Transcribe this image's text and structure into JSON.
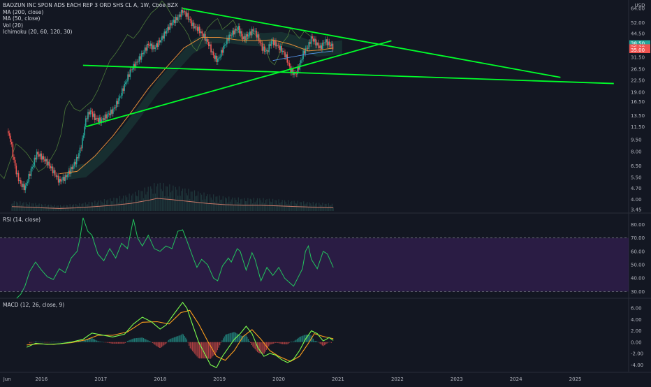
{
  "header": {
    "symbol_line": "BAOZUN INC SPON ADS EACH REP 3 ORD SHS CL A, 1W, Cboe BZX",
    "indicators": [
      "MA (200, close)",
      "MA (50, close)",
      "Vol (20)",
      "Ichimoku (20, 60, 120, 30)"
    ],
    "currency": "USD"
  },
  "rsi_label": "RSI (14, close)",
  "macd_label": "MACD (12, 26, close, 9)",
  "price_badges": [
    "38.50",
    "36.30",
    "35.00"
  ],
  "colors": {
    "background": "#131722",
    "up": "#26a69a",
    "down": "#ef5350",
    "trendline": "#00ff2a",
    "rsi_line": "#22c55e",
    "rsi_band": "#3b1f5c",
    "macd_line": "#7cff4d",
    "signal_line": "#ff9f1c",
    "ma50": "#e38c39",
    "volume": "#c97868"
  },
  "chart_data": [
    {
      "type": "candlestick",
      "title": "BAOZUN INC SPON ADS EACH REP 3 ORD SHS CL A, 1W, Cboe BZX",
      "scale": "log",
      "ylim": [
        3.45,
        64.0
      ],
      "y_ticks": [
        "64.00",
        "52.00",
        "44.50",
        "38.50",
        "31.50",
        "26.50",
        "22.50",
        "19.00",
        "16.50",
        "13.50",
        "11.50",
        "9.50",
        "8.00",
        "6.50",
        "5.50",
        "4.70",
        "4.00",
        "3.45"
      ],
      "x_ticks": [
        "Jun",
        "2016",
        "2017",
        "2018",
        "2019",
        "2020",
        "2021",
        "2022",
        "2023",
        "2024",
        "2025"
      ],
      "x_domain": [
        2015.3,
        2025.9
      ],
      "close_path": [
        [
          2015.42,
          10.8
        ],
        [
          2015.48,
          9.5
        ],
        [
          2015.52,
          7.5
        ],
        [
          2015.58,
          5.8
        ],
        [
          2015.65,
          5.0
        ],
        [
          2015.72,
          4.7
        ],
        [
          2015.78,
          5.5
        ],
        [
          2015.85,
          6.5
        ],
        [
          2015.92,
          7.8
        ],
        [
          2016.0,
          7.4
        ],
        [
          2016.1,
          6.8
        ],
        [
          2016.2,
          6.0
        ],
        [
          2016.3,
          5.2
        ],
        [
          2016.4,
          5.5
        ],
        [
          2016.5,
          6.2
        ],
        [
          2016.6,
          7.2
        ],
        [
          2016.68,
          9.0
        ],
        [
          2016.75,
          13.0
        ],
        [
          2016.82,
          14.5
        ],
        [
          2016.9,
          13.0
        ],
        [
          2017.0,
          12.5
        ],
        [
          2017.1,
          13.5
        ],
        [
          2017.2,
          14.5
        ],
        [
          2017.3,
          17.0
        ],
        [
          2017.4,
          21.0
        ],
        [
          2017.5,
          26.0
        ],
        [
          2017.6,
          29.0
        ],
        [
          2017.7,
          33.0
        ],
        [
          2017.8,
          38.0
        ],
        [
          2017.9,
          36.0
        ],
        [
          2018.0,
          40.0
        ],
        [
          2018.1,
          46.0
        ],
        [
          2018.2,
          52.0
        ],
        [
          2018.3,
          56.0
        ],
        [
          2018.38,
          62.0
        ],
        [
          2018.45,
          58.0
        ],
        [
          2018.55,
          50.0
        ],
        [
          2018.65,
          47.0
        ],
        [
          2018.75,
          42.0
        ],
        [
          2018.82,
          38.0
        ],
        [
          2018.9,
          32.0
        ],
        [
          2018.97,
          30.0
        ],
        [
          2019.05,
          35.0
        ],
        [
          2019.15,
          42.0
        ],
        [
          2019.25,
          46.0
        ],
        [
          2019.32,
          48.0
        ],
        [
          2019.4,
          41.0
        ],
        [
          2019.5,
          44.0
        ],
        [
          2019.58,
          47.0
        ],
        [
          2019.65,
          42.0
        ],
        [
          2019.72,
          36.0
        ],
        [
          2019.8,
          34.0
        ],
        [
          2019.88,
          40.0
        ],
        [
          2019.95,
          38.0
        ],
        [
          2020.05,
          35.0
        ],
        [
          2020.12,
          32.0
        ],
        [
          2020.2,
          26.0
        ],
        [
          2020.28,
          24.5
        ],
        [
          2020.35,
          28.0
        ],
        [
          2020.42,
          34.0
        ],
        [
          2020.5,
          37.0
        ],
        [
          2020.55,
          42.0
        ],
        [
          2020.62,
          39.0
        ],
        [
          2020.7,
          36.0
        ],
        [
          2020.78,
          40.0
        ],
        [
          2020.85,
          38.0
        ],
        [
          2020.92,
          36.5
        ]
      ],
      "ma50_path": [
        [
          2016.3,
          5.8
        ],
        [
          2016.6,
          6.0
        ],
        [
          2016.9,
          7.5
        ],
        [
          2017.2,
          10.0
        ],
        [
          2017.5,
          14.0
        ],
        [
          2017.8,
          20.0
        ],
        [
          2018.1,
          27.0
        ],
        [
          2018.4,
          36.0
        ],
        [
          2018.7,
          42.0
        ],
        [
          2019.0,
          42.0
        ],
        [
          2019.3,
          40.5
        ],
        [
          2019.6,
          40.0
        ],
        [
          2019.9,
          40.5
        ],
        [
          2020.2,
          38.0
        ],
        [
          2020.5,
          34.5
        ],
        [
          2020.7,
          35.0
        ],
        [
          2020.92,
          36.0
        ]
      ],
      "ma200_path": [
        [
          2019.9,
          30.0
        ],
        [
          2020.2,
          31.5
        ],
        [
          2020.5,
          33.0
        ],
        [
          2020.92,
          34.5
        ]
      ],
      "trendlines": [
        {
          "from": [
            2018.38,
            64.0
          ],
          "to": [
            2024.75,
            23.5
          ]
        },
        {
          "from": [
            2016.75,
            11.5
          ],
          "to": [
            2021.9,
            40.0
          ]
        },
        {
          "from": [
            2016.7,
            28.0
          ],
          "to": [
            2025.65,
            21.5
          ]
        }
      ],
      "volume": [
        [
          2015.5,
          0.35
        ],
        [
          2015.8,
          0.3
        ],
        [
          2016.0,
          0.25
        ],
        [
          2016.3,
          0.2
        ],
        [
          2016.6,
          0.25
        ],
        [
          2016.9,
          0.35
        ],
        [
          2017.2,
          0.45
        ],
        [
          2017.5,
          0.6
        ],
        [
          2017.8,
          0.85
        ],
        [
          2017.95,
          1.0
        ],
        [
          2018.2,
          0.9
        ],
        [
          2018.5,
          0.75
        ],
        [
          2018.8,
          0.6
        ],
        [
          2019.1,
          0.5
        ],
        [
          2019.4,
          0.45
        ],
        [
          2019.7,
          0.45
        ],
        [
          2020.0,
          0.4
        ],
        [
          2020.3,
          0.35
        ],
        [
          2020.6,
          0.3
        ],
        [
          2020.92,
          0.25
        ]
      ]
    },
    {
      "type": "line",
      "title": "RSI (14, close)",
      "ylim": [
        25,
        88
      ],
      "y_ticks": [
        "80.00",
        "70.00",
        "60.00",
        "50.00",
        "40.00",
        "30.00"
      ],
      "band": [
        30,
        70
      ],
      "path": [
        [
          2015.58,
          25
        ],
        [
          2015.65,
          28
        ],
        [
          2015.72,
          34
        ],
        [
          2015.8,
          45
        ],
        [
          2015.9,
          52
        ],
        [
          2016.0,
          46
        ],
        [
          2016.1,
          41
        ],
        [
          2016.2,
          39
        ],
        [
          2016.3,
          47
        ],
        [
          2016.4,
          44
        ],
        [
          2016.5,
          55
        ],
        [
          2016.6,
          60
        ],
        [
          2016.65,
          70
        ],
        [
          2016.7,
          85
        ],
        [
          2016.78,
          75
        ],
        [
          2016.85,
          72
        ],
        [
          2016.95,
          58
        ],
        [
          2017.05,
          53
        ],
        [
          2017.15,
          62
        ],
        [
          2017.25,
          55
        ],
        [
          2017.35,
          66
        ],
        [
          2017.45,
          62
        ],
        [
          2017.55,
          84
        ],
        [
          2017.62,
          70
        ],
        [
          2017.7,
          64
        ],
        [
          2017.8,
          72
        ],
        [
          2017.9,
          62
        ],
        [
          2018.0,
          60
        ],
        [
          2018.1,
          64
        ],
        [
          2018.2,
          62
        ],
        [
          2018.3,
          75
        ],
        [
          2018.38,
          76
        ],
        [
          2018.45,
          68
        ],
        [
          2018.55,
          56
        ],
        [
          2018.62,
          48
        ],
        [
          2018.7,
          54
        ],
        [
          2018.8,
          50
        ],
        [
          2018.9,
          40
        ],
        [
          2018.97,
          38
        ],
        [
          2019.05,
          49
        ],
        [
          2019.15,
          55
        ],
        [
          2019.2,
          52
        ],
        [
          2019.3,
          62
        ],
        [
          2019.35,
          60
        ],
        [
          2019.45,
          46
        ],
        [
          2019.55,
          59
        ],
        [
          2019.6,
          54
        ],
        [
          2019.7,
          38
        ],
        [
          2019.8,
          48
        ],
        [
          2019.9,
          42
        ],
        [
          2020.0,
          48
        ],
        [
          2020.1,
          40
        ],
        [
          2020.2,
          36
        ],
        [
          2020.25,
          34
        ],
        [
          2020.32,
          40
        ],
        [
          2020.4,
          47
        ],
        [
          2020.45,
          60
        ],
        [
          2020.5,
          64
        ],
        [
          2020.55,
          54
        ],
        [
          2020.65,
          47
        ],
        [
          2020.75,
          60
        ],
        [
          2020.82,
          58
        ],
        [
          2020.92,
          48
        ]
      ]
    },
    {
      "type": "line",
      "title": "MACD (12, 26, close, 9)",
      "ylim": [
        -5.2,
        7.6
      ],
      "y_ticks": [
        "6.00",
        "4.00",
        "2.00",
        "0.00",
        "-2.00",
        "-4.00"
      ],
      "macd_path": [
        [
          2015.75,
          -0.9
        ],
        [
          2015.9,
          -0.2
        ],
        [
          2016.1,
          -0.4
        ],
        [
          2016.3,
          -0.3
        ],
        [
          2016.5,
          0.0
        ],
        [
          2016.7,
          0.5
        ],
        [
          2016.85,
          1.6
        ],
        [
          2017.0,
          1.3
        ],
        [
          2017.2,
          0.9
        ],
        [
          2017.4,
          1.4
        ],
        [
          2017.55,
          3.2
        ],
        [
          2017.7,
          4.4
        ],
        [
          2017.85,
          3.6
        ],
        [
          2018.0,
          2.3
        ],
        [
          2018.1,
          3.0
        ],
        [
          2018.25,
          5.2
        ],
        [
          2018.38,
          7.0
        ],
        [
          2018.45,
          6.0
        ],
        [
          2018.55,
          3.0
        ],
        [
          2018.65,
          0.0
        ],
        [
          2018.75,
          -2.0
        ],
        [
          2018.85,
          -4.0
        ],
        [
          2018.95,
          -4.5
        ],
        [
          2019.05,
          -2.5
        ],
        [
          2019.15,
          -1.0
        ],
        [
          2019.25,
          0.5
        ],
        [
          2019.35,
          1.5
        ],
        [
          2019.45,
          2.8
        ],
        [
          2019.55,
          1.5
        ],
        [
          2019.65,
          -1.0
        ],
        [
          2019.75,
          -2.5
        ],
        [
          2019.85,
          -2.0
        ],
        [
          2019.95,
          -2.3
        ],
        [
          2020.05,
          -3.1
        ],
        [
          2020.15,
          -3.6
        ],
        [
          2020.25,
          -3.0
        ],
        [
          2020.35,
          -1.5
        ],
        [
          2020.45,
          0.5
        ],
        [
          2020.55,
          2.0
        ],
        [
          2020.65,
          1.5
        ],
        [
          2020.75,
          0.2
        ],
        [
          2020.85,
          0.8
        ],
        [
          2020.92,
          0.3
        ]
      ],
      "signal_path": [
        [
          2015.75,
          -0.5
        ],
        [
          2015.95,
          -0.3
        ],
        [
          2016.2,
          -0.4
        ],
        [
          2016.5,
          -0.1
        ],
        [
          2016.75,
          0.4
        ],
        [
          2016.95,
          1.2
        ],
        [
          2017.2,
          1.2
        ],
        [
          2017.45,
          1.8
        ],
        [
          2017.7,
          3.5
        ],
        [
          2017.95,
          3.6
        ],
        [
          2018.15,
          3.2
        ],
        [
          2018.35,
          5.2
        ],
        [
          2018.5,
          5.6
        ],
        [
          2018.65,
          3.2
        ],
        [
          2018.8,
          0.2
        ],
        [
          2018.95,
          -2.5
        ],
        [
          2019.1,
          -3.2
        ],
        [
          2019.25,
          -1.5
        ],
        [
          2019.4,
          1.0
        ],
        [
          2019.55,
          2.2
        ],
        [
          2019.7,
          0.5
        ],
        [
          2019.85,
          -1.5
        ],
        [
          2020.0,
          -2.5
        ],
        [
          2020.2,
          -3.4
        ],
        [
          2020.35,
          -2.5
        ],
        [
          2020.5,
          -0.2
        ],
        [
          2020.6,
          1.5
        ],
        [
          2020.75,
          1.0
        ],
        [
          2020.92,
          0.6
        ]
      ]
    }
  ]
}
